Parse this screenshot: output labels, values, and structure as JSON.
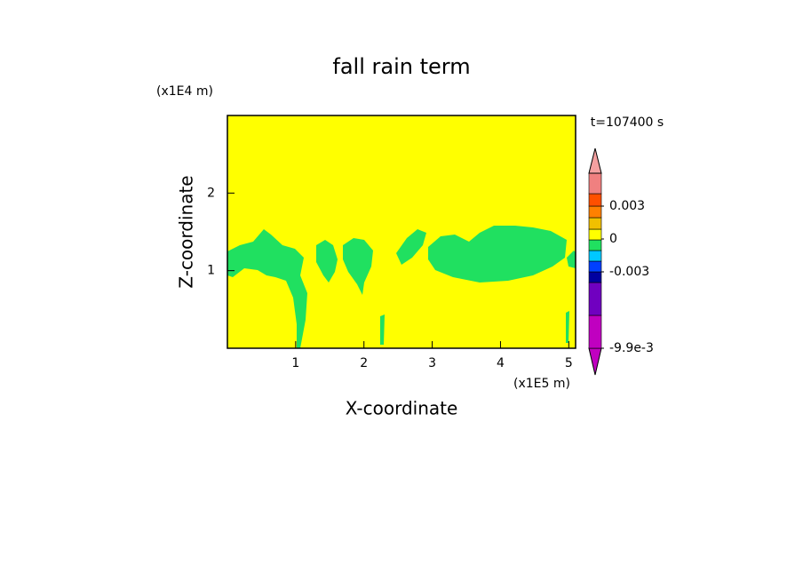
{
  "chart_data": {
    "type": "contour",
    "title": "fall rain term",
    "x_label": "X-coordinate",
    "y_label": "Z-coordinate",
    "x_unit": "(x1E5 m)",
    "y_unit": "(x1E4 m)",
    "time_label": "t=107400 s",
    "xlim": [
      0,
      5.1
    ],
    "ylim": [
      0,
      3
    ],
    "xticks": [
      1,
      2,
      3,
      4,
      5
    ],
    "yticks": [
      1,
      2
    ],
    "background_color": "#ffff00",
    "region_color": "#20e060",
    "colorbar": {
      "colors": [
        "#c000c0",
        "#c000c0",
        "#7000c0",
        "#0000a0",
        "#0040ff",
        "#00c8ff",
        "#20e060",
        "#ffff00",
        "#f0c000",
        "#ff8000",
        "#ff5000",
        "#f08080",
        "#f4a0a0"
      ],
      "ticks": [
        0.003,
        0,
        -0.003,
        {
          "value": -0.0099,
          "label": "-9.9e-3"
        }
      ]
    }
  }
}
